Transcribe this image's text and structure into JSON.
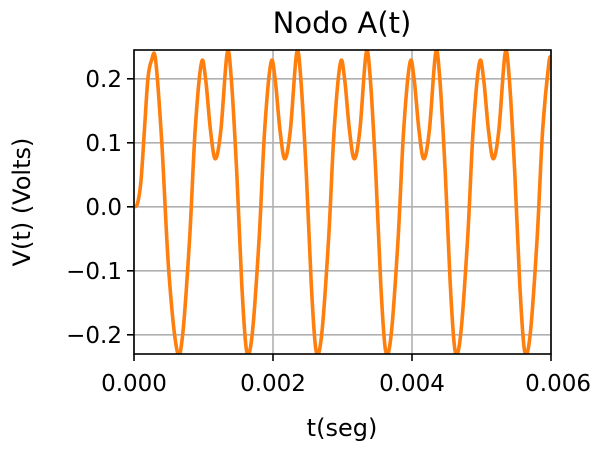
{
  "chart_data": {
    "type": "line",
    "title": "Nodo A(t)",
    "xlabel": "t(seg)",
    "ylabel": "V(t) (Volts)",
    "xlim": [
      0,
      0.006
    ],
    "ylim": [
      -0.23,
      0.245
    ],
    "grid": true,
    "x_ticks": [
      0,
      0.002,
      0.004,
      0.006
    ],
    "x_tick_labels": [
      "0.000",
      "0.002",
      "0.004",
      "0.006"
    ],
    "y_ticks": [
      0.2,
      0.1,
      0.0,
      -0.1,
      -0.2
    ],
    "y_tick_labels": [
      "0.2",
      "0.1",
      "0.0",
      "−0.1",
      "−0.2"
    ],
    "series": [
      {
        "color": "#ff7f0e",
        "x": [
          0,
          5e-05,
          0.0001,
          0.00015,
          0.0002,
          0.00025,
          0.00031,
          0.0004,
          0.0005,
          0.00062,
          0.0007,
          0.0008,
          0.00088,
          0.00097,
          0.00103,
          0.0011,
          0.00117,
          0.00125,
          0.00134,
          0.0014,
          0.00148,
          0.00155,
          0.00162,
          0.0017,
          0.0018,
          0.00188,
          0.00197,
          0.00203,
          0.0021,
          0.00217,
          0.00225,
          0.00234,
          0.0024,
          0.00248,
          0.00255,
          0.00262,
          0.0027,
          0.0028,
          0.00288,
          0.00297,
          0.00303,
          0.0031,
          0.00317,
          0.00325,
          0.00334,
          0.0034,
          0.00348,
          0.00355,
          0.00362,
          0.0037,
          0.0038,
          0.00388,
          0.00397,
          0.00403,
          0.0041,
          0.00417,
          0.00425,
          0.00434,
          0.0044,
          0.00448,
          0.00455,
          0.00462,
          0.0047,
          0.0048,
          0.00488,
          0.00497,
          0.00503,
          0.0051,
          0.00517,
          0.00525,
          0.00534,
          0.0054,
          0.00548,
          0.00555,
          0.00562,
          0.0057,
          0.0058,
          0.00588,
          0.00597,
          0.006
        ],
        "y": [
          0,
          0.005,
          0.04,
          0.12,
          0.2,
          0.228,
          0.23,
          0.1,
          -0.1,
          -0.225,
          -0.2,
          -0.05,
          0.12,
          0.225,
          0.2,
          0.12,
          0.075,
          0.12,
          0.24,
          0.2,
          0.05,
          -0.12,
          -0.225,
          -0.2,
          -0.05,
          0.12,
          0.225,
          0.2,
          0.12,
          0.075,
          0.12,
          0.24,
          0.2,
          0.05,
          -0.12,
          -0.225,
          -0.2,
          -0.05,
          0.12,
          0.225,
          0.2,
          0.12,
          0.075,
          0.12,
          0.24,
          0.2,
          0.05,
          -0.12,
          -0.225,
          -0.2,
          -0.05,
          0.12,
          0.225,
          0.2,
          0.12,
          0.075,
          0.12,
          0.24,
          0.2,
          0.05,
          -0.12,
          -0.225,
          -0.2,
          -0.05,
          0.12,
          0.225,
          0.2,
          0.12,
          0.075,
          0.12,
          0.24,
          0.2,
          0.05,
          -0.12,
          -0.225,
          -0.2,
          -0.05,
          0.12,
          0.225,
          0.23
        ]
      }
    ]
  }
}
